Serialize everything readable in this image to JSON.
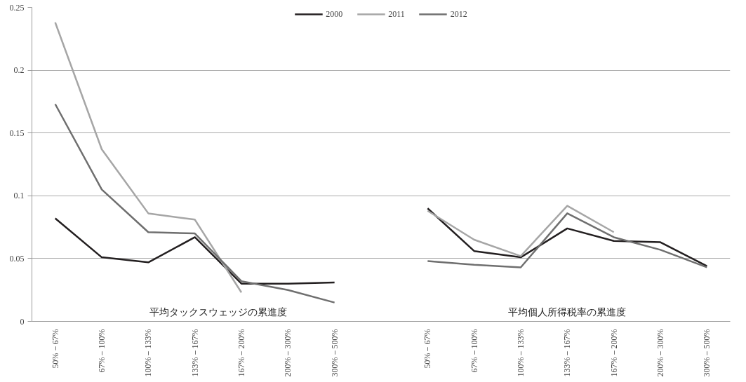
{
  "chart_data": {
    "type": "line",
    "categories": [
      "50%－67%",
      "67%－100%",
      "100%－133%",
      "133%－167%",
      "167%－200%",
      "200%－300%",
      "300%－500%",
      null,
      "50%－67%",
      "67%－100%",
      "100%－133%",
      "133%－167%",
      "167%－200%",
      "200%－300%",
      "300%－500%"
    ],
    "series": [
      {
        "name": "2000",
        "color": "#231f20",
        "values": [
          0.082,
          0.051,
          0.047,
          0.067,
          0.03,
          0.03,
          0.031,
          null,
          0.09,
          0.056,
          0.051,
          0.074,
          0.064,
          0.063,
          0.044
        ]
      },
      {
        "name": "2011",
        "color": "#a6a6a6",
        "values": [
          0.238,
          0.137,
          0.086,
          0.081,
          0.023,
          null,
          null,
          null,
          0.088,
          0.065,
          0.052,
          0.092,
          0.071,
          null,
          null
        ]
      },
      {
        "name": "2012",
        "color": "#6f6f6f",
        "values": [
          0.173,
          0.105,
          0.071,
          0.07,
          0.032,
          0.025,
          0.015,
          null,
          0.048,
          0.045,
          0.043,
          0.086,
          0.067,
          0.057,
          0.043
        ]
      }
    ],
    "annotations": [
      "平均タックスウェッジの累進度",
      "平均個人所得税率の累進度"
    ],
    "ylim": [
      0,
      0.25
    ],
    "yticks": [
      0,
      0.05,
      0.1,
      0.15,
      0.2,
      0.25
    ],
    "grid": "y",
    "legend": "top",
    "marker": "none",
    "line_style": "solid"
  }
}
